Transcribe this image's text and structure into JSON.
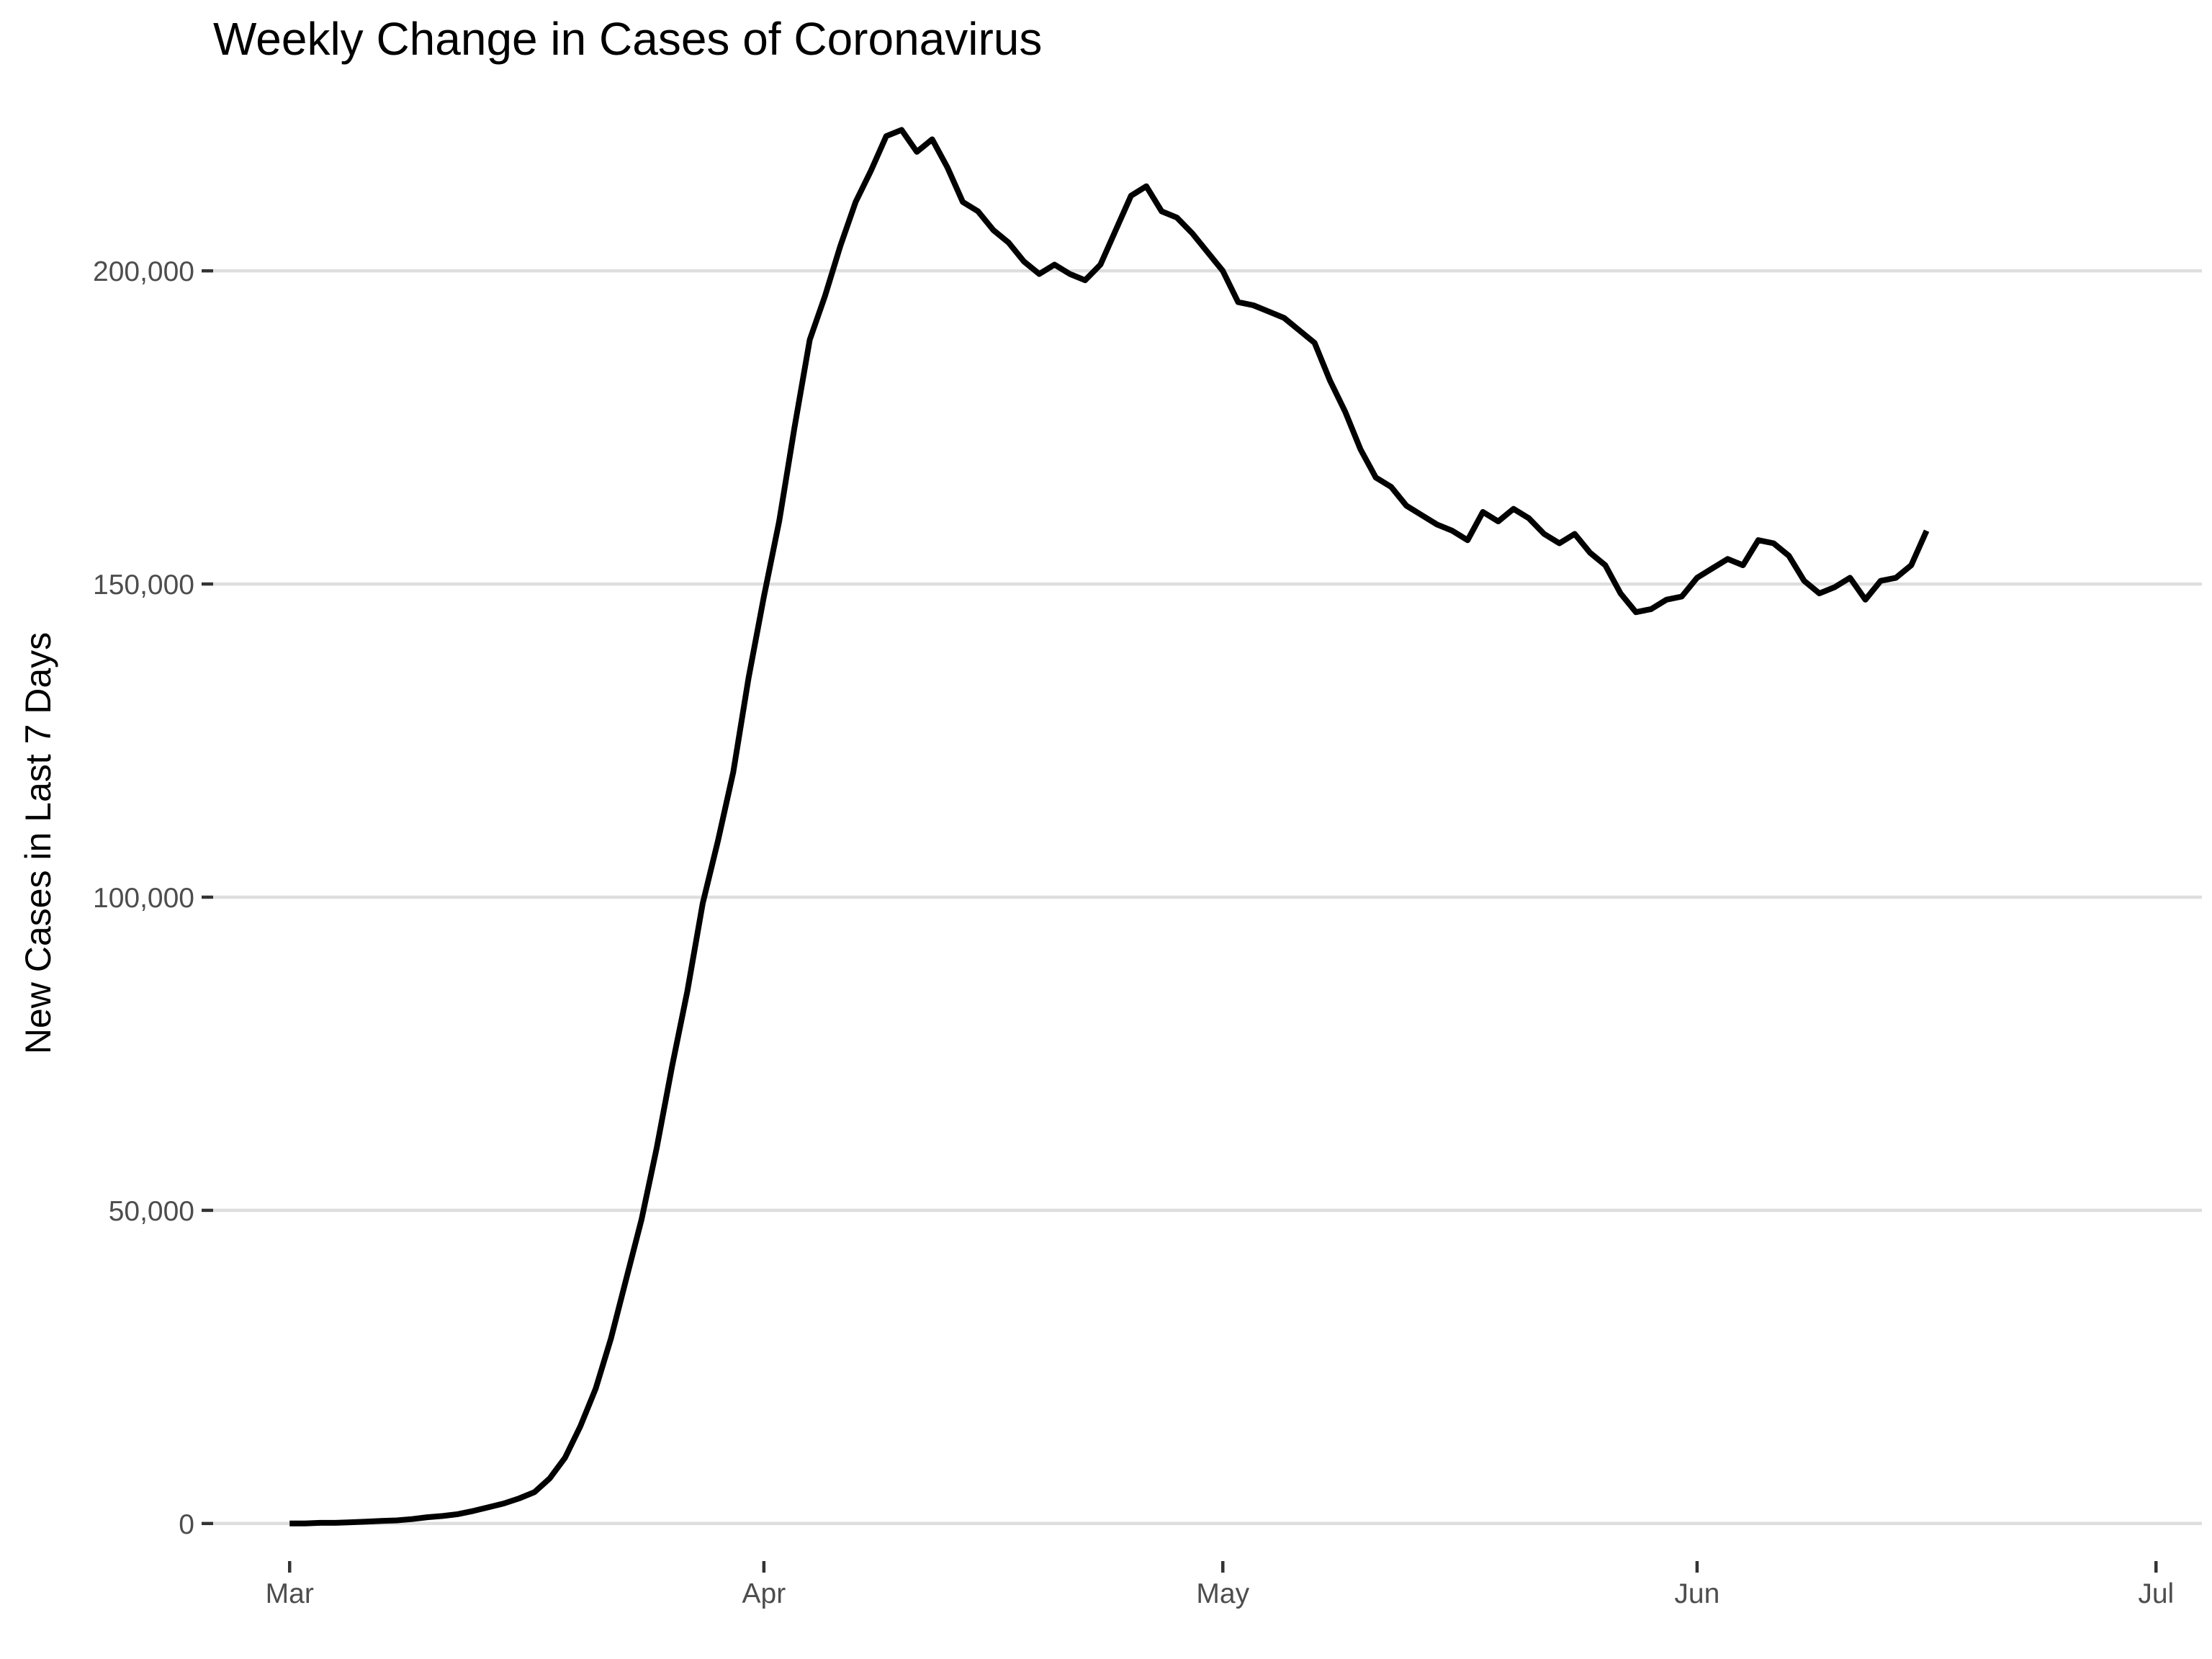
{
  "chart_data": {
    "type": "line",
    "title": "Weekly Change in Cases of Coronavirus",
    "xlabel": "",
    "ylabel": "New Cases in Last 7 Days",
    "x_axis": {
      "scale": "date",
      "range": [
        "2020-02-25",
        "2020-07-04"
      ],
      "ticks": [
        {
          "date": "2020-03-01",
          "label": "Mar"
        },
        {
          "date": "2020-04-01",
          "label": "Apr"
        },
        {
          "date": "2020-05-01",
          "label": "May"
        },
        {
          "date": "2020-06-01",
          "label": "Jun"
        },
        {
          "date": "2020-07-01",
          "label": "Jul"
        }
      ]
    },
    "y_axis": {
      "range": [
        -6000,
        226000
      ],
      "ticks": [
        {
          "value": 0,
          "label": "0"
        },
        {
          "value": 50000,
          "label": "50,000"
        },
        {
          "value": 100000,
          "label": "100,000"
        },
        {
          "value": 150000,
          "label": "150,000"
        },
        {
          "value": 200000,
          "label": "200,000"
        }
      ]
    },
    "grid": "horizontal major gridlines",
    "colors": {
      "line": "#000000",
      "grid": "#dedede",
      "tick_text": "#4d4d4d",
      "background": "#ffffff"
    },
    "series": [
      {
        "x": [
          "2020-03-01",
          "2020-03-02",
          "2020-03-03",
          "2020-03-04",
          "2020-03-05",
          "2020-03-06",
          "2020-03-07",
          "2020-03-08",
          "2020-03-09",
          "2020-03-10",
          "2020-03-11",
          "2020-03-12",
          "2020-03-13",
          "2020-03-14",
          "2020-03-15",
          "2020-03-16",
          "2020-03-17",
          "2020-03-18",
          "2020-03-19",
          "2020-03-20",
          "2020-03-21",
          "2020-03-22",
          "2020-03-23",
          "2020-03-24",
          "2020-03-25",
          "2020-03-26",
          "2020-03-27",
          "2020-03-28",
          "2020-03-29",
          "2020-03-30",
          "2020-03-31",
          "2020-04-01",
          "2020-04-02",
          "2020-04-03",
          "2020-04-04",
          "2020-04-05",
          "2020-04-06",
          "2020-04-07",
          "2020-04-08",
          "2020-04-09",
          "2020-04-10",
          "2020-04-11",
          "2020-04-12",
          "2020-04-13",
          "2020-04-14",
          "2020-04-15",
          "2020-04-16",
          "2020-04-17",
          "2020-04-18",
          "2020-04-19",
          "2020-04-20",
          "2020-04-21",
          "2020-04-22",
          "2020-04-23",
          "2020-04-24",
          "2020-04-25",
          "2020-04-26",
          "2020-04-27",
          "2020-04-28",
          "2020-04-29",
          "2020-04-30",
          "2020-05-01",
          "2020-05-02",
          "2020-05-03",
          "2020-05-04",
          "2020-05-05",
          "2020-05-06",
          "2020-05-07",
          "2020-05-08",
          "2020-05-09",
          "2020-05-10",
          "2020-05-11",
          "2020-05-12",
          "2020-05-13",
          "2020-05-14",
          "2020-05-15",
          "2020-05-16",
          "2020-05-17",
          "2020-05-18",
          "2020-05-19",
          "2020-05-20",
          "2020-05-21",
          "2020-05-22",
          "2020-05-23",
          "2020-05-24",
          "2020-05-25",
          "2020-05-26",
          "2020-05-27",
          "2020-05-28",
          "2020-05-29",
          "2020-05-30",
          "2020-05-31",
          "2020-06-01",
          "2020-06-02",
          "2020-06-03",
          "2020-06-04",
          "2020-06-05",
          "2020-06-06",
          "2020-06-07",
          "2020-06-08",
          "2020-06-09",
          "2020-06-10",
          "2020-06-11",
          "2020-06-12",
          "2020-06-13",
          "2020-06-14",
          "2020-06-15",
          "2020-06-16"
        ],
        "y": [
          0,
          0,
          100,
          100,
          200,
          300,
          400,
          500,
          700,
          1000,
          1200,
          1500,
          2000,
          2600,
          3200,
          4000,
          5000,
          7200,
          10500,
          15500,
          21500,
          29500,
          39000,
          48500,
          60000,
          73000,
          85000,
          99000,
          109000,
          120000,
          135000,
          148000,
          160000,
          175000,
          189000,
          196000,
          204000,
          211000,
          216000,
          221500,
          222500,
          219000,
          221000,
          216500,
          211000,
          209500,
          206500,
          204500,
          201500,
          199500,
          201000,
          199500,
          198500,
          201000,
          206500,
          212000,
          213500,
          209500,
          208500,
          206000,
          203000,
          200000,
          195000,
          194500,
          193500,
          192500,
          190500,
          188500,
          182500,
          177500,
          171500,
          167000,
          165500,
          162500,
          161000,
          159500,
          158500,
          157000,
          161500,
          160000,
          162000,
          160500,
          158000,
          156500,
          158000,
          155000,
          153000,
          148500,
          145500,
          146000,
          147500,
          148000,
          151000,
          152500,
          154000,
          153000,
          157000,
          156500,
          154500,
          150500,
          148500,
          149500,
          151000,
          147500,
          150500,
          151000,
          153000,
          158500
        ]
      }
    ]
  }
}
